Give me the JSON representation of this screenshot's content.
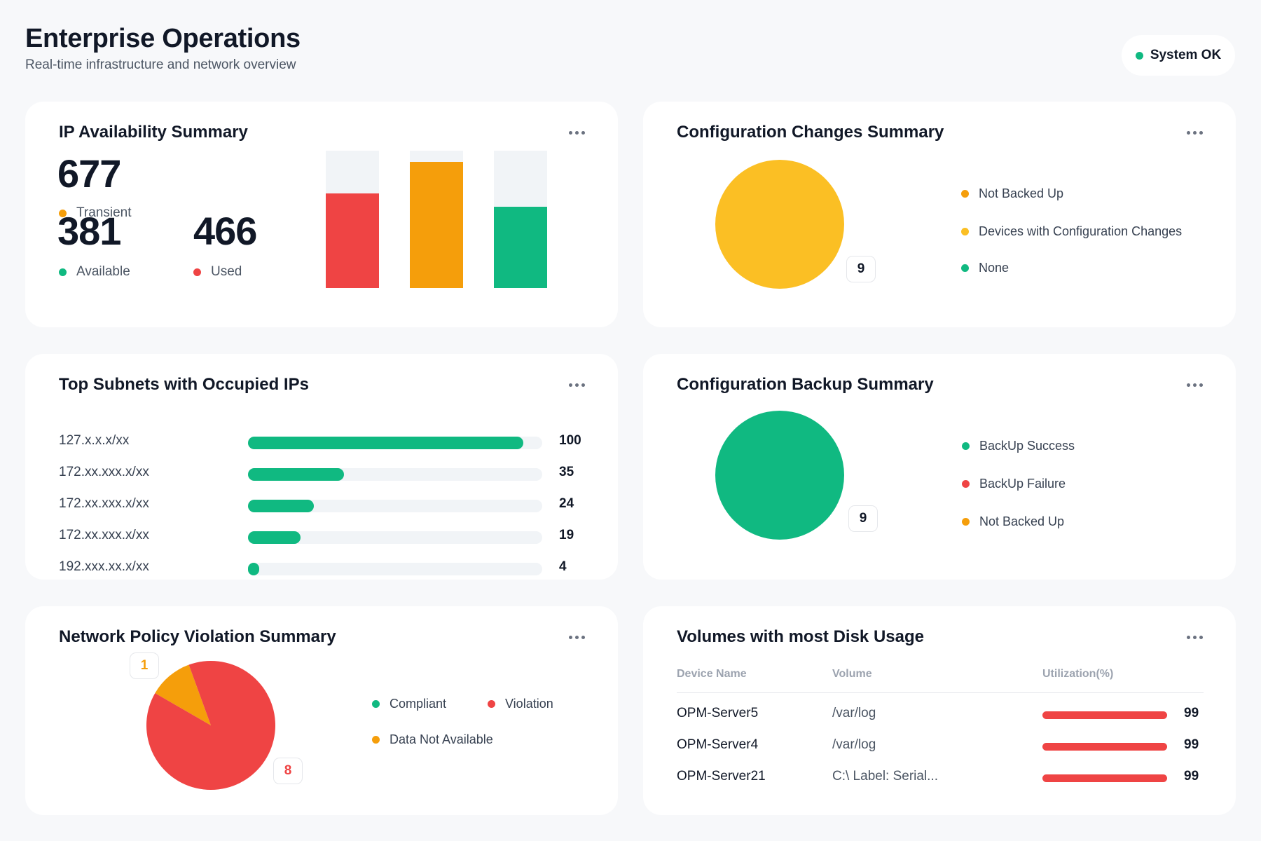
{
  "header": {
    "title": "Enterprise Operations",
    "subtitle": "Real-time infrastructure and network overview",
    "status": "System OK"
  },
  "ip_availability": {
    "title": "IP Availability Summary",
    "transient": {
      "value": "677",
      "label": "Transient",
      "color": "#f59e0b"
    },
    "available": {
      "value": "381",
      "label": "Available",
      "color": "#10b981"
    },
    "used": {
      "value": "466",
      "label": "Used",
      "color": "#ef4444"
    },
    "chart_data": {
      "type": "bar",
      "series": [
        {
          "name": "Used",
          "fraction": 0.69,
          "color": "#ef4444"
        },
        {
          "name": "Transient",
          "fraction": 0.92,
          "color": "#f59e0b"
        },
        {
          "name": "Available",
          "fraction": 0.59,
          "color": "#10b981"
        }
      ]
    }
  },
  "config_changes": {
    "title": "Configuration Changes Summary",
    "badge": "9",
    "pie_color": "#fbbf24",
    "legend": [
      {
        "label": "Not Backed Up",
        "color": "#f59e0b"
      },
      {
        "label": "Devices with Configuration Changes",
        "color": "#fbbf24"
      },
      {
        "label": "None",
        "color": "#10b981"
      }
    ]
  },
  "top_subnets": {
    "title": "Top Subnets with Occupied IPs",
    "chart_data": {
      "type": "bar",
      "categories": [
        "127.x.x.x/xx",
        "172.xx.xxx.x/xx",
        "172.xx.xxx.x/xx",
        "172.xx.xxx.x/xx",
        "192.xxx.xx.x/xx"
      ],
      "values": [
        100,
        35,
        24,
        19,
        4
      ],
      "labels": [
        "100",
        "35",
        "24",
        "19",
        "4"
      ],
      "max": 107
    }
  },
  "config_backup": {
    "title": "Configuration Backup Summary",
    "badge": "9",
    "pie_color": "#10b981",
    "legend": [
      {
        "label": "BackUp Success",
        "color": "#10b981"
      },
      {
        "label": "BackUp Failure",
        "color": "#ef4444"
      },
      {
        "label": "Not Backed Up",
        "color": "#f59e0b"
      }
    ]
  },
  "policy_violation": {
    "title": "Network Policy Violation Summary",
    "chart_data": {
      "type": "pie",
      "slices": [
        {
          "name": "Violation",
          "value": 8,
          "color": "#ef4444"
        },
        {
          "name": "Data Not Available",
          "value": 1,
          "color": "#f59e0b"
        }
      ]
    },
    "badge_small": "1",
    "badge_large": "8",
    "legend": [
      {
        "label": "Compliant",
        "color": "#10b981"
      },
      {
        "label": "Violation",
        "color": "#ef4444"
      },
      {
        "label": "Data Not Available",
        "color": "#f59e0b"
      }
    ]
  },
  "disk_usage": {
    "title": "Volumes with most Disk Usage",
    "columns": [
      "Device Name",
      "Volume",
      "Utilization(%)"
    ],
    "rows": [
      {
        "device": "OPM-Server5",
        "volume": "/var/log",
        "util": "99"
      },
      {
        "device": "OPM-Server4",
        "volume": "/var/log",
        "util": "99"
      },
      {
        "device": "OPM-Server21",
        "volume": "C:\\ Label: Serial...",
        "util": "99"
      }
    ]
  }
}
